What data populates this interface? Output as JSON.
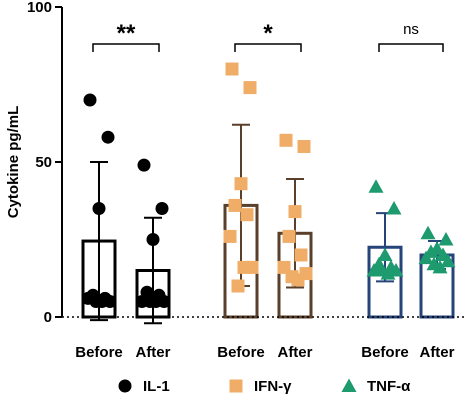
{
  "chart_data": {
    "type": "bar",
    "ylabel": "Cytokine pg/mL",
    "ylim": [
      0,
      100
    ],
    "yticks": [
      0,
      50,
      100
    ],
    "categories": [
      "Before",
      "After",
      "Before",
      "After",
      "Before",
      "After"
    ],
    "colors": {
      "IL-1": "#000000",
      "IFN-γ": "#efad67",
      "TNF-α": "#1e9a6f"
    },
    "bar_edge_colors": {
      "IL-1": "#000000",
      "IFN-γ": "#5a3f2a",
      "TNF-α": "#25457a"
    },
    "series": [
      {
        "name": "IL-1",
        "marker": "circle",
        "significance": "**",
        "groups": [
          {
            "label": "Before",
            "mean": 24.5,
            "sd": 25.5,
            "points": [
              70,
              58,
              35,
              7,
              6,
              6,
              5,
              5,
              5
            ]
          },
          {
            "label": "After",
            "mean": 15,
            "sd": 17,
            "points": [
              49,
              35,
              25,
              8,
              7,
              5,
              5,
              5,
              5
            ]
          }
        ]
      },
      {
        "name": "IFN-γ",
        "marker": "square",
        "significance": "*",
        "groups": [
          {
            "label": "Before",
            "mean": 36,
            "sd": 26,
            "points": [
              80,
              74,
              43,
              36,
              33,
              26,
              16,
              10,
              16
            ]
          },
          {
            "label": "After",
            "mean": 27,
            "sd": 17.5,
            "points": [
              57,
              55,
              34,
              26,
              20,
              16,
              14,
              13,
              12
            ]
          }
        ]
      },
      {
        "name": "TNF-α",
        "marker": "triangle",
        "significance": "ns",
        "groups": [
          {
            "label": "Before",
            "mean": 22.5,
            "sd": 11,
            "points": [
              42,
              35,
              20,
              17,
              16,
              15,
              15,
              15,
              14
            ]
          },
          {
            "label": "After",
            "mean": 20,
            "sd": 4.5,
            "points": [
              27,
              25,
              22,
              21,
              20,
              19,
              18,
              17,
              16
            ]
          }
        ]
      }
    ],
    "legend": [
      "IL-1",
      "IFN-γ",
      "TNF-α"
    ],
    "legend_position": "bottom"
  }
}
